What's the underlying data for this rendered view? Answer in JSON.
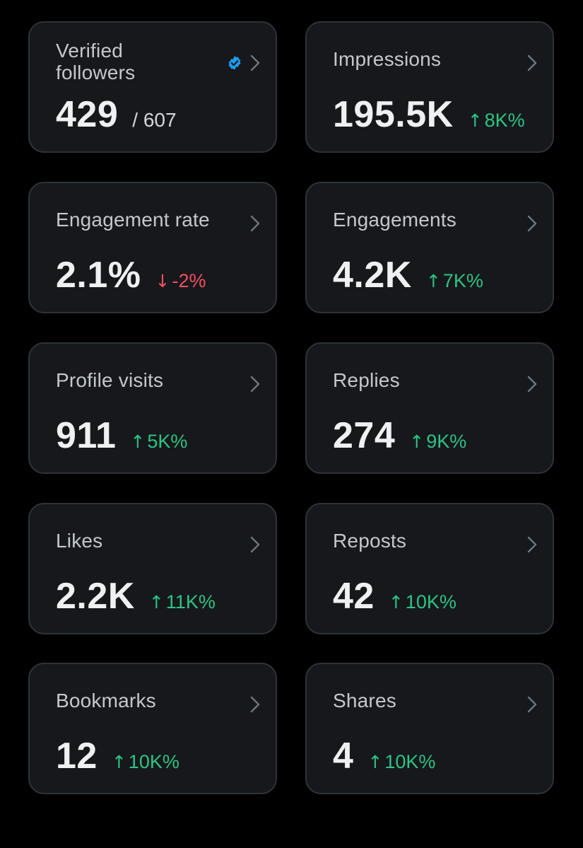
{
  "colors": {
    "background": "#000000",
    "card": "#16181c",
    "card_border": "#2f3336",
    "positive": "#2dc484",
    "negative": "#f4505e",
    "verified_badge": "#1d9bf0"
  },
  "cards": [
    {
      "label": "Verified followers",
      "value": "429",
      "total": "/ 607",
      "badge_icon": "verified-badge-icon",
      "chevron_icon": "chevron-right-icon"
    },
    {
      "label": "Impressions",
      "value": "195.5K",
      "delta": "8K%",
      "direction": "up",
      "arrow": "↑"
    },
    {
      "label": "Engagement rate",
      "value": "2.1%",
      "delta": "-2%",
      "direction": "down",
      "arrow": "↓"
    },
    {
      "label": "Engagements",
      "value": "4.2K",
      "delta": "7K%",
      "direction": "up",
      "arrow": "↑"
    },
    {
      "label": "Profile visits",
      "value": "911",
      "delta": "5K%",
      "direction": "up",
      "arrow": "↑"
    },
    {
      "label": "Replies",
      "value": "274",
      "delta": "9K%",
      "direction": "up",
      "arrow": "↑"
    },
    {
      "label": "Likes",
      "value": "2.2K",
      "delta": "11K%",
      "direction": "up",
      "arrow": "↑"
    },
    {
      "label": "Reposts",
      "value": "42",
      "delta": "10K%",
      "direction": "up",
      "arrow": "↑"
    },
    {
      "label": "Bookmarks",
      "value": "12",
      "delta": "10K%",
      "direction": "up",
      "arrow": "↑"
    },
    {
      "label": "Shares",
      "value": "4",
      "delta": "10K%",
      "direction": "up",
      "arrow": "↑"
    }
  ]
}
